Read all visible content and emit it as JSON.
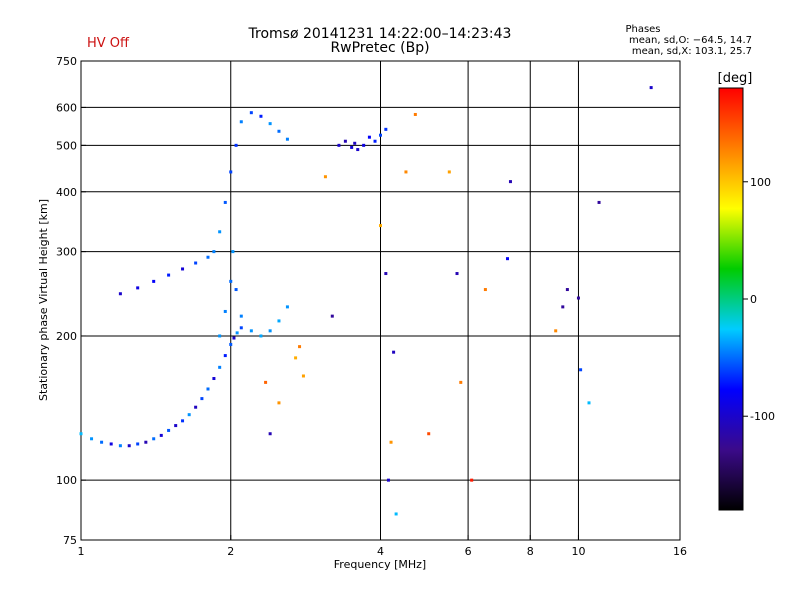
{
  "status": {
    "hv_label": "HV Off",
    "hv_color": "#cc1111"
  },
  "header": {
    "title": "Tromsø 20141231 14:22:00–14:23:43",
    "subtitle": "RwPretec (Bp)"
  },
  "phases": {
    "title": "Phases",
    "stat_o": "mean, sd,O: −64.5, 14.7",
    "stat_x": "mean, sd,X: 103.1, 25.7"
  },
  "chart_data": {
    "type": "scatter",
    "xlabel": "Frequency [MHz]",
    "ylabel": "Stationary phase Virtual Height [km]",
    "x_scale": "log",
    "y_scale": "log",
    "xlim": [
      1,
      16
    ],
    "ylim": [
      75,
      750
    ],
    "x_ticks": [
      1,
      2,
      4,
      6,
      8,
      10,
      16
    ],
    "y_ticks": [
      75,
      100,
      200,
      300,
      400,
      500,
      600,
      750
    ],
    "x_grid": [
      2,
      4,
      6,
      8,
      10
    ],
    "y_grid": [
      100,
      200,
      300,
      400,
      500,
      600
    ],
    "grid": true,
    "colorbar": {
      "label": "[deg]",
      "range": [
        -180,
        180
      ],
      "ticks": [
        100,
        0,
        -100
      ],
      "colors": [
        "#000000",
        "#3b0a8a",
        "#0000ff",
        "#00ccff",
        "#00cc00",
        "#ffff00",
        "#ff7f00",
        "#ff0000"
      ]
    },
    "series": [
      {
        "trace": "o_low_trace",
        "x": [
          1.0,
          1.05,
          1.1,
          1.15,
          1.2,
          1.25,
          1.3,
          1.35,
          1.4,
          1.45,
          1.5,
          1.55,
          1.6,
          1.65,
          1.7,
          1.75,
          1.8,
          1.85,
          1.9,
          1.95,
          2.0,
          2.03,
          2.06,
          2.1
        ],
        "y": [
          125,
          122,
          120,
          119,
          118,
          118,
          119,
          120,
          122,
          124,
          127,
          130,
          133,
          137,
          142,
          148,
          155,
          163,
          172,
          182,
          192,
          198,
          203,
          208
        ],
        "phase": [
          -30,
          -40,
          -50,
          -90,
          -45,
          -100,
          -60,
          -110,
          -50,
          -95,
          -55,
          -100,
          -65,
          -40,
          -105,
          -60,
          -50,
          -95,
          -45,
          -70,
          -55,
          -100,
          -40,
          -60
        ]
      },
      {
        "trace": "o_high_trace",
        "x": [
          1.2,
          1.3,
          1.4,
          1.5,
          1.6,
          1.7,
          1.8,
          1.85,
          1.9,
          1.95,
          2.0,
          2.05,
          2.1,
          2.2,
          2.3,
          2.4,
          2.5,
          2.6
        ],
        "y": [
          245,
          252,
          260,
          268,
          276,
          284,
          292,
          300,
          330,
          380,
          440,
          500,
          560,
          585,
          575,
          555,
          535,
          515
        ],
        "phase": [
          -100,
          -90,
          -80,
          -70,
          -95,
          -60,
          -50,
          -45,
          -40,
          -55,
          -60,
          -65,
          -45,
          -60,
          -70,
          -40,
          -50,
          -45
        ]
      },
      {
        "trace": "second_hop_trace",
        "x": [
          1.9,
          1.95,
          2.0,
          2.02,
          2.05,
          2.1,
          2.2,
          2.3,
          2.4,
          2.5,
          2.6
        ],
        "y": [
          200,
          225,
          260,
          300,
          250,
          220,
          205,
          200,
          205,
          215,
          230
        ],
        "phase": [
          -40,
          -45,
          -50,
          -40,
          -55,
          -45,
          -40,
          -35,
          -40,
          -35,
          -40
        ]
      },
      {
        "trace": "cluster_500km",
        "x": [
          3.3,
          3.4,
          3.5,
          3.55,
          3.6,
          3.7,
          3.8,
          3.9,
          4.0,
          4.1
        ],
        "y": [
          500,
          510,
          495,
          505,
          490,
          500,
          520,
          510,
          525,
          540
        ],
        "phase": [
          -100,
          -110,
          -95,
          -105,
          -100,
          -90,
          -80,
          -70,
          -60,
          -65
        ]
      },
      {
        "trace": "scattered_points",
        "x": [
          2.35,
          2.4,
          2.5,
          2.7,
          2.75,
          2.8,
          3.1,
          3.2,
          4.0,
          4.1,
          4.15,
          4.2,
          4.25,
          4.3,
          4.5,
          4.7,
          5.0,
          5.5,
          5.7,
          5.8,
          6.1,
          6.5,
          7.2,
          7.3,
          9.0,
          9.3,
          9.5,
          10.0,
          10.1,
          10.5,
          11.0,
          14.0
        ],
        "y": [
          160,
          125,
          145,
          180,
          190,
          165,
          430,
          220,
          340,
          270,
          100,
          120,
          185,
          85,
          440,
          580,
          125,
          440,
          270,
          160,
          100,
          250,
          290,
          420,
          205,
          230,
          250,
          240,
          170,
          145,
          380,
          660
        ],
        "phase": [
          140,
          -110,
          120,
          110,
          130,
          115,
          120,
          -120,
          110,
          -110,
          -100,
          120,
          -105,
          -30,
          125,
          130,
          150,
          115,
          -110,
          130,
          170,
          130,
          -80,
          -110,
          125,
          -120,
          -120,
          -120,
          -60,
          -30,
          -120,
          -100
        ]
      }
    ]
  }
}
